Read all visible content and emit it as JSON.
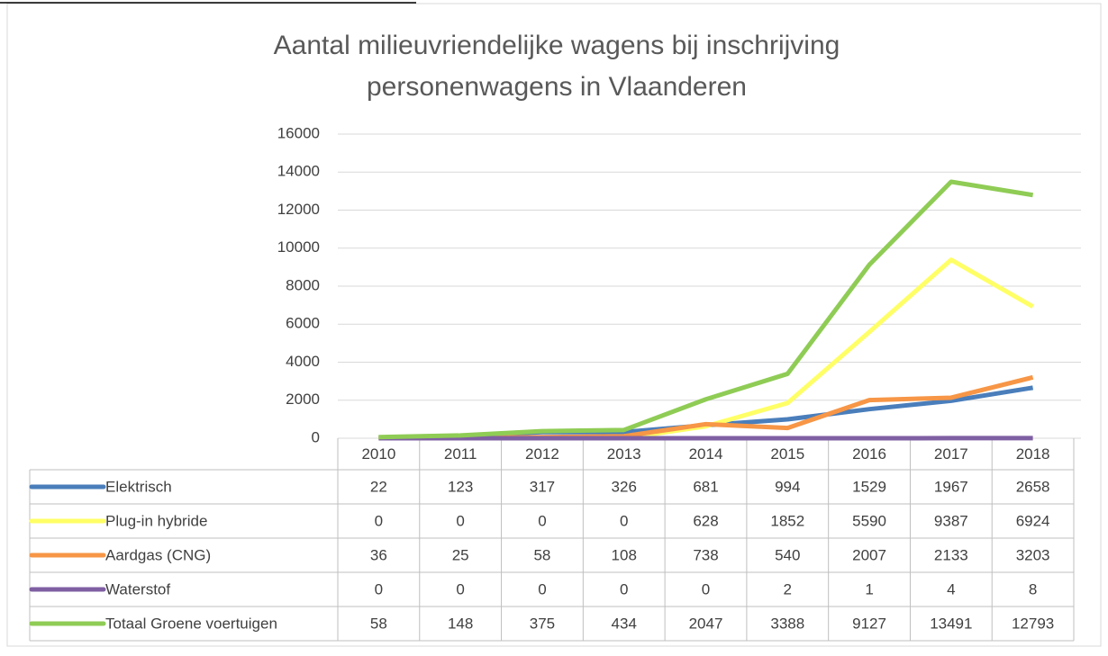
{
  "chart_data": {
    "type": "line",
    "title": [
      "Aantal milieuvriendelijke wagens bij inschrijving",
      "personenwagens in Vlaanderen"
    ],
    "categories": [
      "2010",
      "2011",
      "2012",
      "2013",
      "2014",
      "2015",
      "2016",
      "2017",
      "2018"
    ],
    "series": [
      {
        "name": "Elektrisch",
        "color": "#4a7ebb",
        "values": [
          22,
          123,
          317,
          326,
          681,
          994,
          1529,
          1967,
          2658
        ]
      },
      {
        "name": "Plug-in hybride",
        "color": "#ffff66",
        "values": [
          0,
          0,
          0,
          0,
          628,
          1852,
          5590,
          9387,
          6924
        ]
      },
      {
        "name": "Aardgas (CNG)",
        "color": "#f79646",
        "values": [
          36,
          25,
          58,
          108,
          738,
          540,
          2007,
          2133,
          3203
        ]
      },
      {
        "name": "Waterstof",
        "color": "#7f5fa3",
        "values": [
          0,
          0,
          0,
          0,
          0,
          2,
          1,
          4,
          8
        ]
      },
      {
        "name": "Totaal Groene voertuigen",
        "color": "#8fcc55",
        "values": [
          58,
          148,
          375,
          434,
          2047,
          3388,
          9127,
          13491,
          12793
        ]
      }
    ],
    "ylim": [
      0,
      16000
    ],
    "yticks": [
      0,
      2000,
      4000,
      6000,
      8000,
      10000,
      12000,
      14000,
      16000
    ],
    "grid": true,
    "data_table": true
  }
}
